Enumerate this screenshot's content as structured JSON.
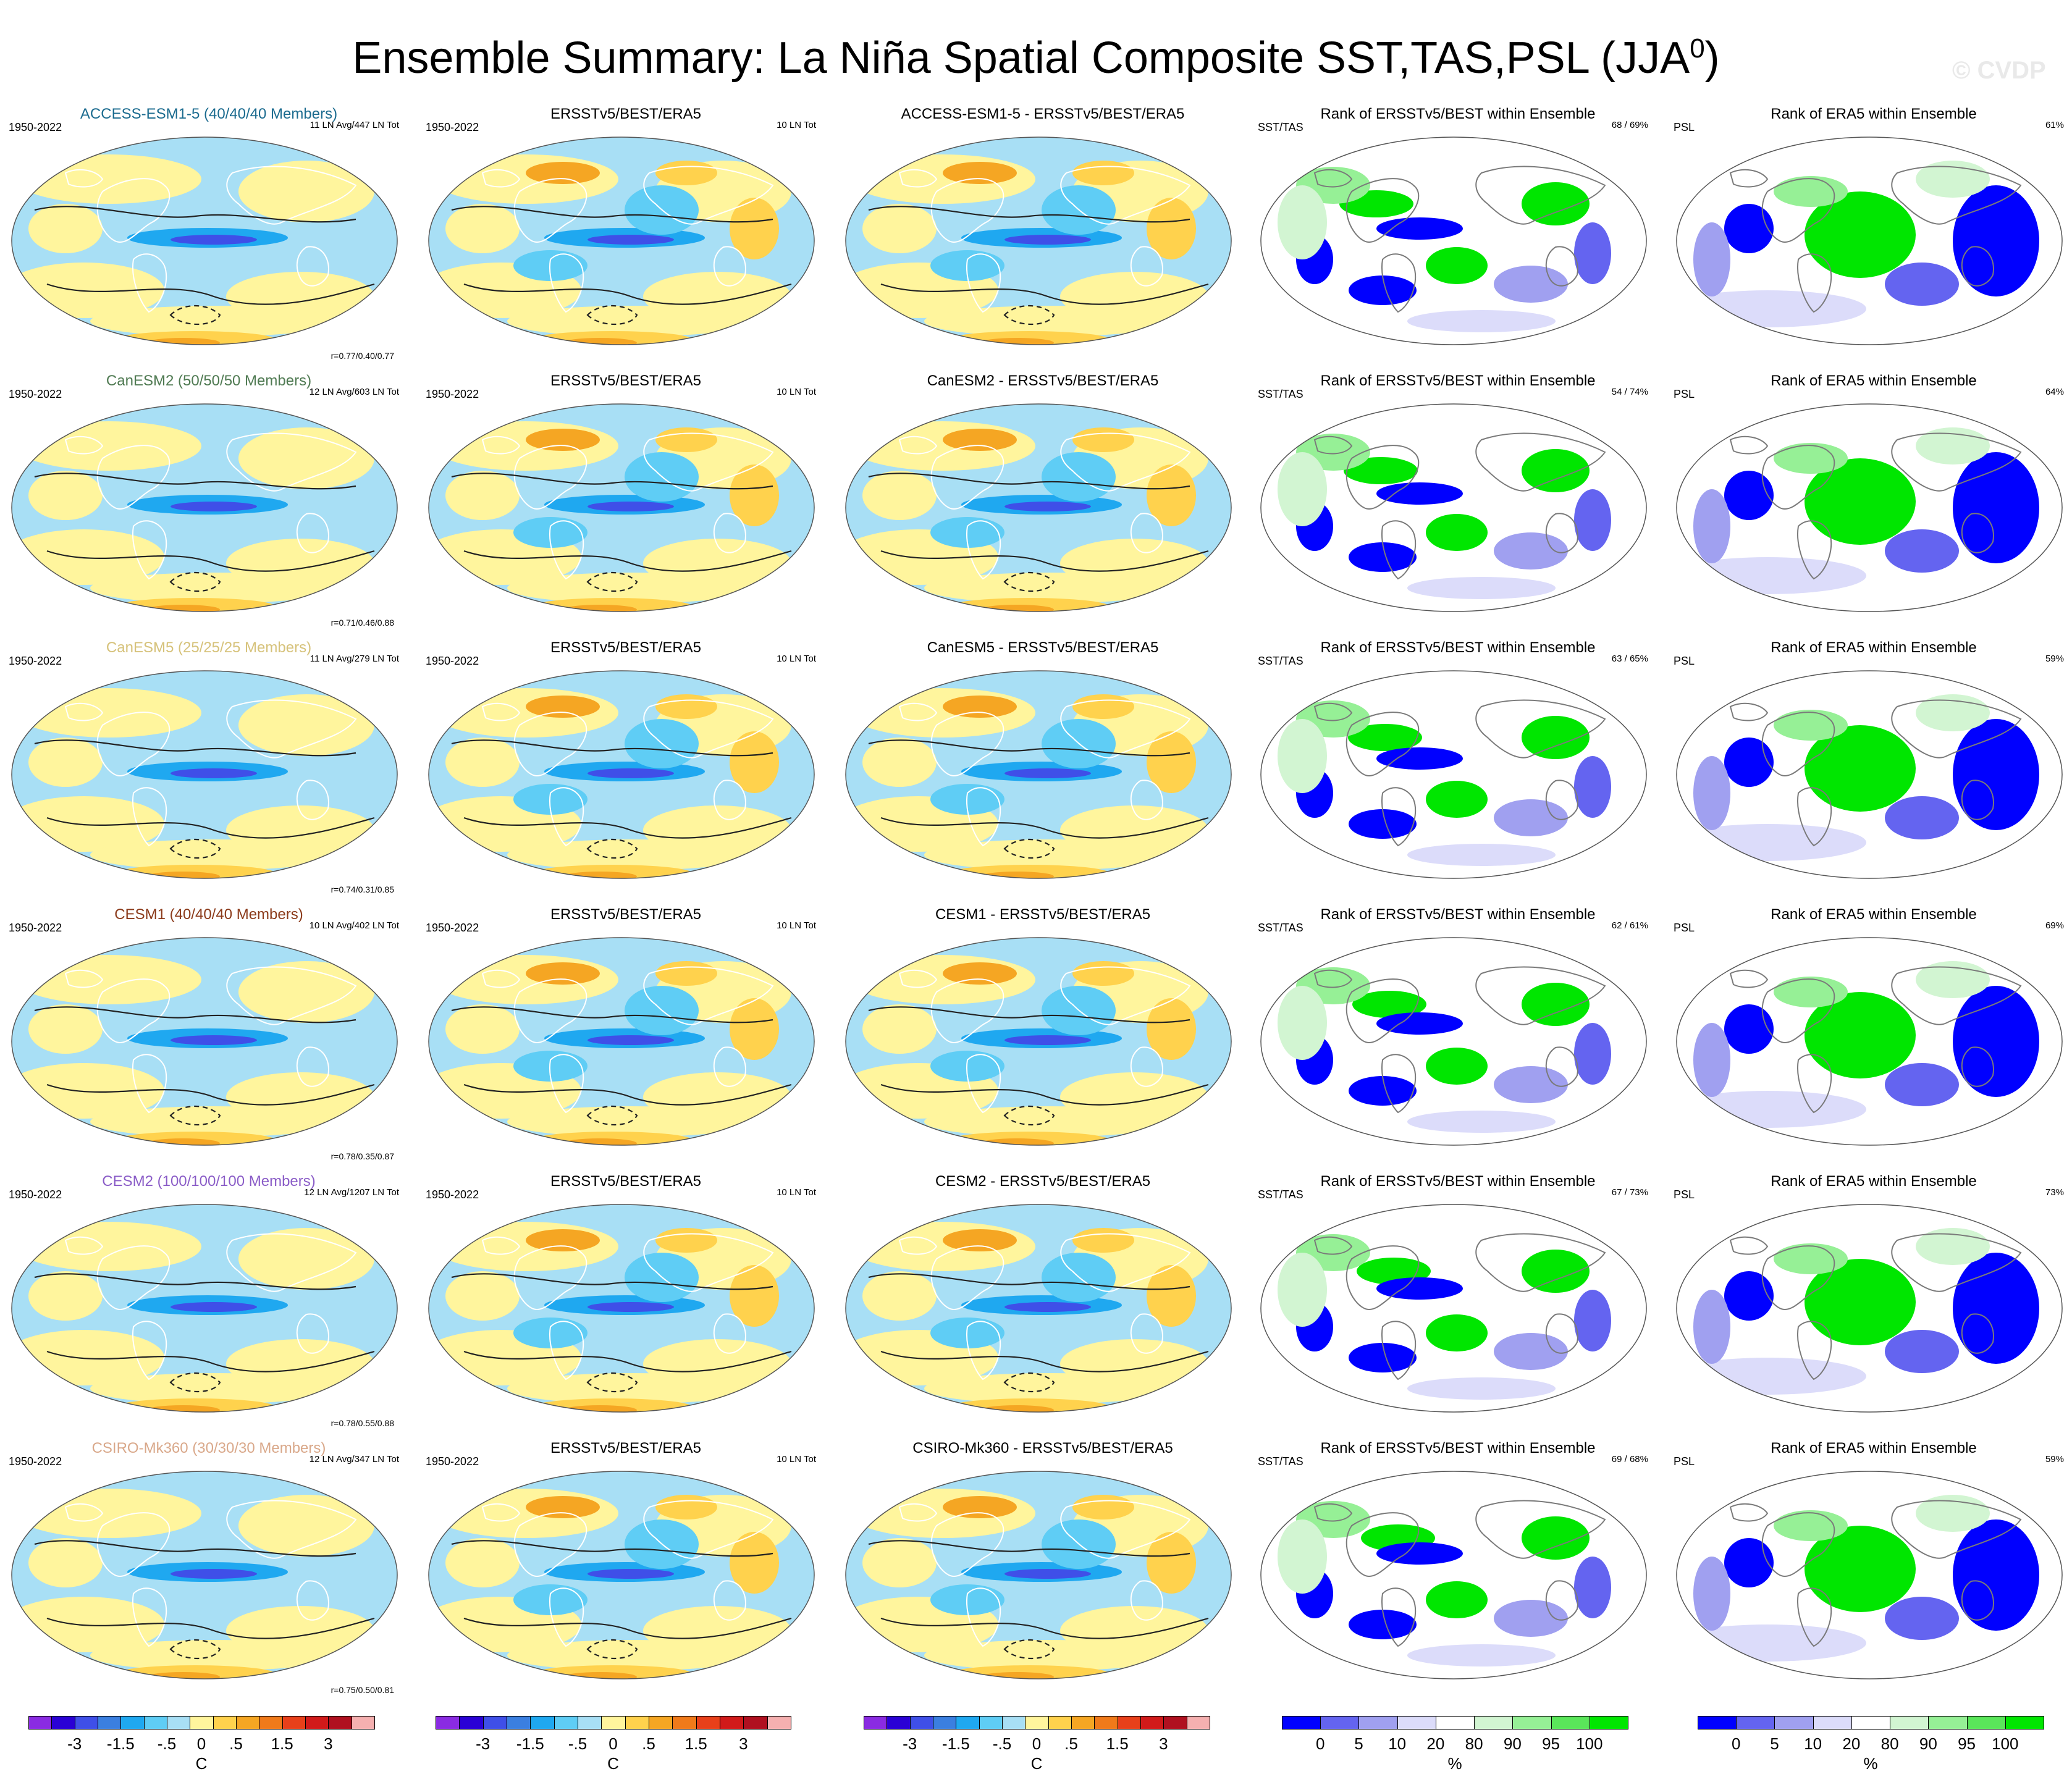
{
  "title": "Ensemble Summary: La Niña Spatial Composite SST,TAS,PSL (JJA",
  "title_sup": "0",
  "title_close": ")",
  "watermark": "© CVDP",
  "rows": [
    {
      "model": "ACCESS-ESM1-5 (40/40/40 Members)",
      "model_color": "#1b6b8f",
      "period": "1950-2022",
      "stats": "11 LN Avg/447 LN Tot",
      "corr": "r=0.77/0.40/0.77",
      "obs_title": "ERSSTv5/BEST/ERA5",
      "obs_period": "1950-2022",
      "obs_stats": "10 LN Tot",
      "diff_title": "ACCESS-ESM1-5 - ERSSTv5/BEST/ERA5",
      "rank1_title": "Rank of ERSSTv5/BEST within Ensemble",
      "rank1_label": "SST/TAS",
      "rank1_pct": "68 /  69%",
      "rank2_title": "Rank of ERA5 within Ensemble",
      "rank2_label": "PSL",
      "rank2_pct": "61%"
    },
    {
      "model": "CanESM2 (50/50/50 Members)",
      "model_color": "#4f7a52",
      "period": "1950-2022",
      "stats": "12 LN Avg/603 LN Tot",
      "corr": "r=0.71/0.46/0.88",
      "obs_title": "ERSSTv5/BEST/ERA5",
      "obs_period": "1950-2022",
      "obs_stats": "10 LN Tot",
      "diff_title": "CanESM2 - ERSSTv5/BEST/ERA5",
      "rank1_title": "Rank of ERSSTv5/BEST within Ensemble",
      "rank1_label": "SST/TAS",
      "rank1_pct": "54 /  74%",
      "rank2_title": "Rank of ERA5 within Ensemble",
      "rank2_label": "PSL",
      "rank2_pct": "64%"
    },
    {
      "model": "CanESM5 (25/25/25 Members)",
      "model_color": "#d6c27a",
      "period": "1950-2022",
      "stats": "11 LN Avg/279 LN Tot",
      "corr": "r=0.74/0.31/0.85",
      "obs_title": "ERSSTv5/BEST/ERA5",
      "obs_period": "1950-2022",
      "obs_stats": "10 LN Tot",
      "diff_title": "CanESM5 - ERSSTv5/BEST/ERA5",
      "rank1_title": "Rank of ERSSTv5/BEST within Ensemble",
      "rank1_label": "SST/TAS",
      "rank1_pct": "63 /  65%",
      "rank2_title": "Rank of ERA5 within Ensemble",
      "rank2_label": "PSL",
      "rank2_pct": "59%"
    },
    {
      "model": "CESM1 (40/40/40 Members)",
      "model_color": "#8b3a1a",
      "period": "1950-2022",
      "stats": "10 LN Avg/402 LN Tot",
      "corr": "r=0.78/0.35/0.87",
      "obs_title": "ERSSTv5/BEST/ERA5",
      "obs_period": "1950-2022",
      "obs_stats": "10 LN Tot",
      "diff_title": "CESM1 - ERSSTv5/BEST/ERA5",
      "rank1_title": "Rank of ERSSTv5/BEST within Ensemble",
      "rank1_label": "SST/TAS",
      "rank1_pct": "62 /  61%",
      "rank2_title": "Rank of ERA5 within Ensemble",
      "rank2_label": "PSL",
      "rank2_pct": "69%"
    },
    {
      "model": "CESM2 (100/100/100 Members)",
      "model_color": "#8a5cc7",
      "period": "1950-2022",
      "stats": "12 LN Avg/1207 LN Tot",
      "corr": "r=0.78/0.55/0.88",
      "obs_title": "ERSSTv5/BEST/ERA5",
      "obs_period": "1950-2022",
      "obs_stats": "10 LN Tot",
      "diff_title": "CESM2 - ERSSTv5/BEST/ERA5",
      "rank1_title": "Rank of ERSSTv5/BEST within Ensemble",
      "rank1_label": "SST/TAS",
      "rank1_pct": "67 /  73%",
      "rank2_title": "Rank of ERA5 within Ensemble",
      "rank2_label": "PSL",
      "rank2_pct": "73%"
    },
    {
      "model": "CSIRO-Mk360 (30/30/30 Members)",
      "model_color": "#d9a88a",
      "period": "1950-2022",
      "stats": "12 LN Avg/347 LN Tot",
      "corr": "r=0.75/0.50/0.81",
      "obs_title": "ERSSTv5/BEST/ERA5",
      "obs_period": "1950-2022",
      "obs_stats": "10 LN Tot",
      "diff_title": "CSIRO-Mk360 - ERSSTv5/BEST/ERA5",
      "rank1_title": "Rank of ERSSTv5/BEST within Ensemble",
      "rank1_label": "SST/TAS",
      "rank1_pct": "69 /  68%",
      "rank2_title": "Rank of ERA5 within Ensemble",
      "rank2_label": "PSL",
      "rank2_pct": "59%"
    }
  ],
  "temp_colorbar": {
    "colors": [
      "#8a2be2",
      "#2a00d5",
      "#3f4fe8",
      "#3b7fe0",
      "#1fa8f0",
      "#5fcdf5",
      "#a8dff5",
      "#fff59d",
      "#ffd24d",
      "#f5a623",
      "#f07a1a",
      "#e8401a",
      "#d11a1a",
      "#b01020",
      "#f5b0b0"
    ],
    "labels": [
      "-3",
      "-1.5",
      "-.5",
      "0",
      ".5",
      "1.5",
      "3"
    ],
    "unit": "C"
  },
  "rank_colorbar": {
    "colors": [
      "#0000ff",
      "#6464f0",
      "#a0a0f0",
      "#dcdcfa",
      "#ffffff",
      "#d2f5d2",
      "#96f096",
      "#5ae65a",
      "#00e600"
    ],
    "labels": [
      "0",
      "5",
      "10",
      "20",
      "80",
      "90",
      "95",
      "100"
    ],
    "unit": "%"
  }
}
